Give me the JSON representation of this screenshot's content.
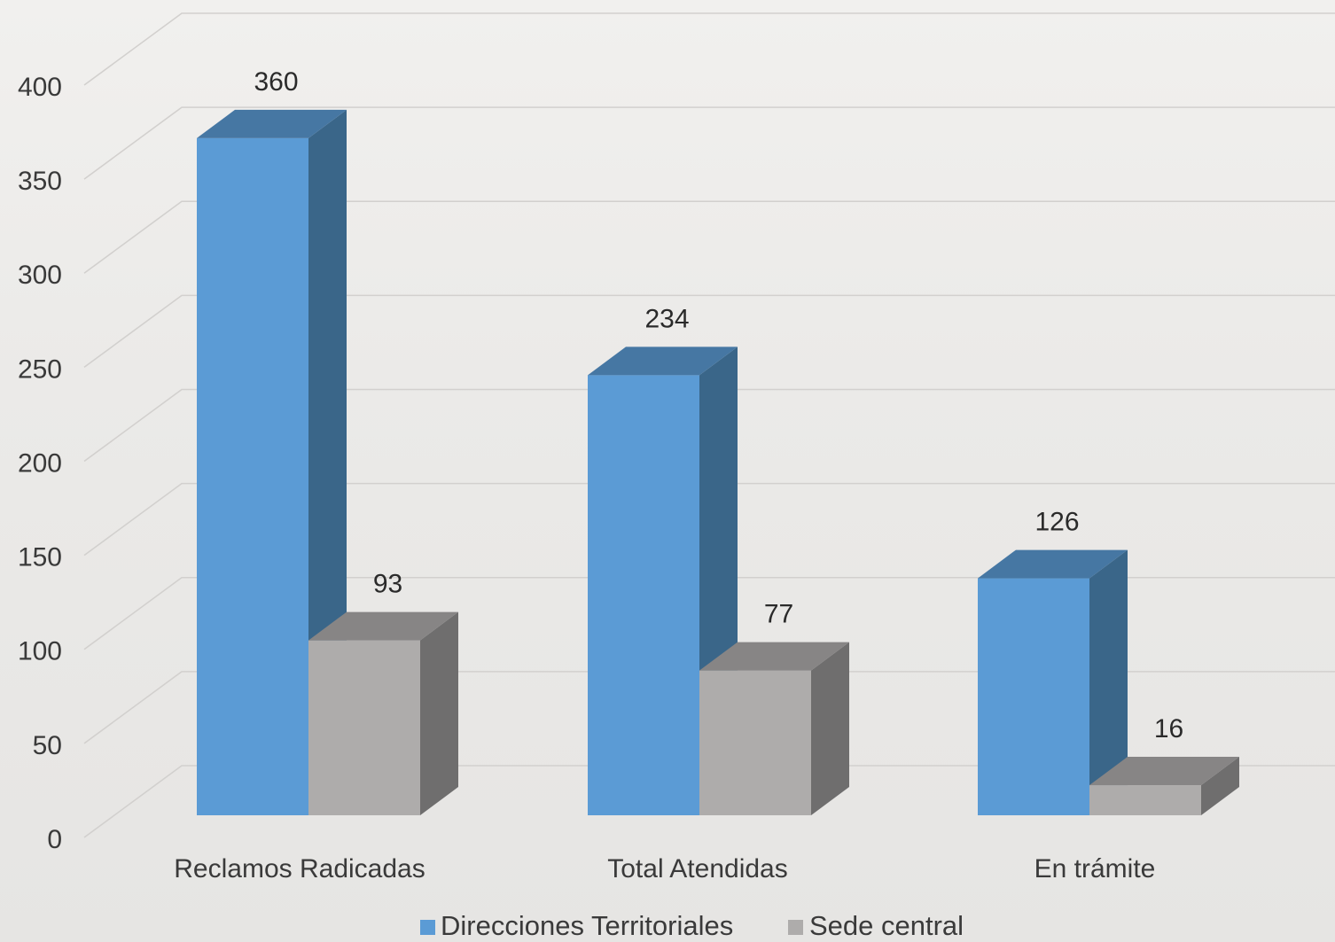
{
  "chart_data": {
    "type": "bar",
    "categories": [
      "Reclamos Radicadas",
      "Total Atendidas",
      "En trámite"
    ],
    "series": [
      {
        "name": "Direcciones Territoriales",
        "values": [
          360,
          234,
          126
        ],
        "color": "#5b9bd5",
        "side_color": "#3a6689",
        "top_color": "#4677a3"
      },
      {
        "name": "Sede central",
        "values": [
          93,
          77,
          16
        ],
        "color": "#aeacab",
        "side_color": "#6f6e6e",
        "top_color": "#878585"
      }
    ],
    "ylim": [
      0,
      400
    ],
    "yticks": [
      0,
      50,
      100,
      150,
      200,
      250,
      300,
      350,
      400
    ],
    "grid": true,
    "legend_position": "bottom",
    "three_d": true
  }
}
